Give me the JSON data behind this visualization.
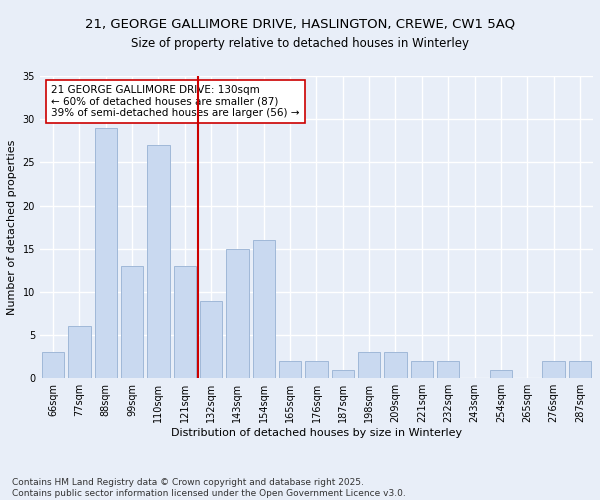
{
  "title": "21, GEORGE GALLIMORE DRIVE, HASLINGTON, CREWE, CW1 5AQ",
  "subtitle": "Size of property relative to detached houses in Winterley",
  "xlabel": "Distribution of detached houses by size in Winterley",
  "ylabel": "Number of detached properties",
  "categories": [
    "66sqm",
    "77sqm",
    "88sqm",
    "99sqm",
    "110sqm",
    "121sqm",
    "132sqm",
    "143sqm",
    "154sqm",
    "165sqm",
    "176sqm",
    "187sqm",
    "198sqm",
    "209sqm",
    "221sqm",
    "232sqm",
    "243sqm",
    "254sqm",
    "265sqm",
    "276sqm",
    "287sqm"
  ],
  "values": [
    3,
    6,
    29,
    13,
    27,
    13,
    9,
    15,
    16,
    2,
    2,
    1,
    3,
    3,
    2,
    2,
    0,
    1,
    0,
    2,
    2
  ],
  "bar_color": "#c9d9f0",
  "bar_edge_color": "#a0b8d8",
  "background_color": "#e8eef8",
  "grid_color": "#ffffff",
  "vline_color": "#cc0000",
  "annotation_text": "21 GEORGE GALLIMORE DRIVE: 130sqm\n← 60% of detached houses are smaller (87)\n39% of semi-detached houses are larger (56) →",
  "annotation_box_color": "#ffffff",
  "annotation_box_edge": "#cc0000",
  "ylim": [
    0,
    35
  ],
  "yticks": [
    0,
    5,
    10,
    15,
    20,
    25,
    30,
    35
  ],
  "footer": "Contains HM Land Registry data © Crown copyright and database right 2025.\nContains public sector information licensed under the Open Government Licence v3.0.",
  "title_fontsize": 9.5,
  "subtitle_fontsize": 8.5,
  "xlabel_fontsize": 8,
  "ylabel_fontsize": 8,
  "tick_fontsize": 7,
  "annotation_fontsize": 7.5,
  "footer_fontsize": 6.5
}
